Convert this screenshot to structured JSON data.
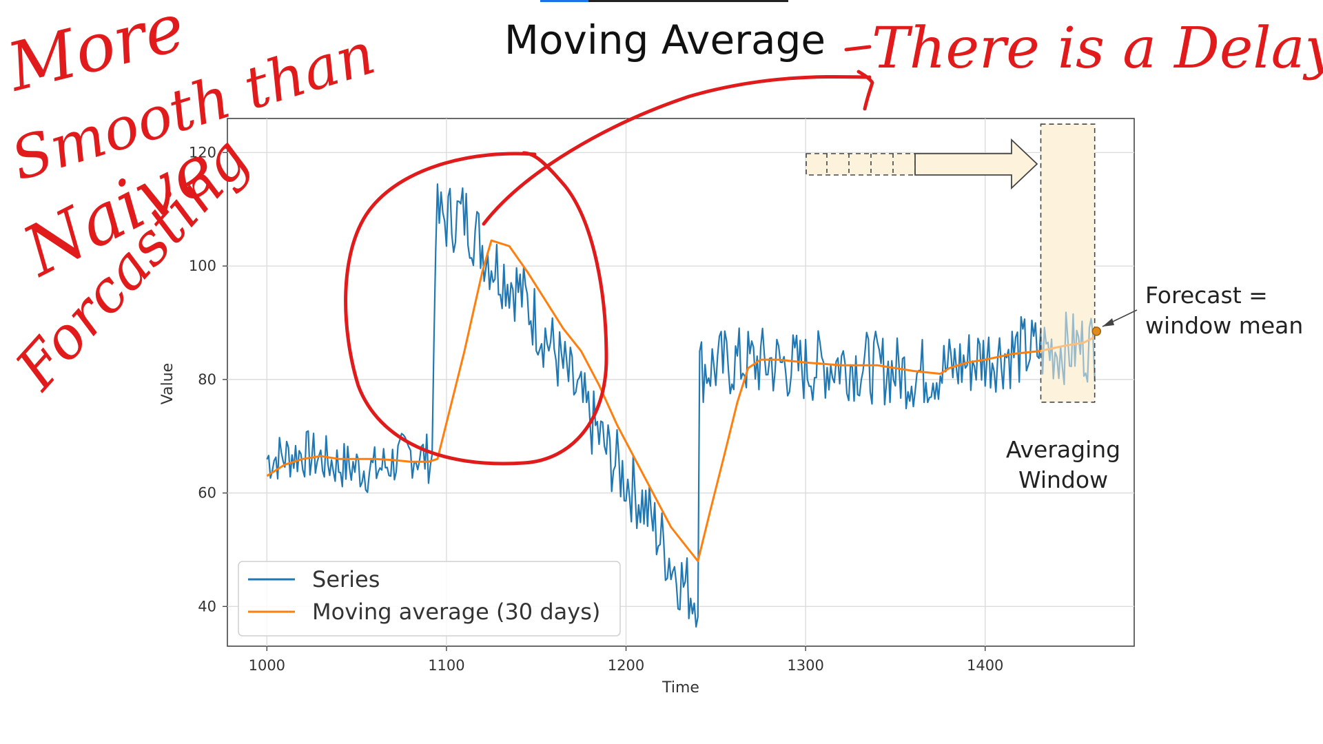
{
  "slide": {
    "title": "Moving Average"
  },
  "colors": {
    "series": "#1f77b4",
    "moving_average": "#ff7f0e",
    "ink": "#e11b1b",
    "window_fill": "#fdf3dc"
  },
  "annotations": {
    "forecast_label_1": "Forecast =",
    "forecast_label_2": "window mean",
    "window_label_1": "Averaging",
    "window_label_2": "Window"
  },
  "handwriting": {
    "line1": "More",
    "line2": "Smooth than",
    "line3": "Naive",
    "line4": "Forcasting",
    "right_note": "There is a Delay"
  },
  "chart_data": {
    "type": "line",
    "title": "",
    "xlabel": "Time",
    "ylabel": "Value",
    "xlim": [
      978,
      1483
    ],
    "ylim": [
      33,
      126
    ],
    "xticks": [
      1000,
      1100,
      1200,
      1300,
      1400
    ],
    "yticks": [
      40,
      60,
      80,
      100,
      120
    ],
    "grid": true,
    "legend_position": "lower-left",
    "averaging_window": {
      "x_start": 1431,
      "x_end": 1461,
      "y_start": 76,
      "y_end": 125
    },
    "forecast_point": {
      "x": 1462,
      "y": 88.5
    },
    "series": [
      {
        "name": "Series",
        "style": "noisy",
        "values": [
          [
            1000,
            66
          ],
          [
            1020,
            67
          ],
          [
            1040,
            65
          ],
          [
            1060,
            64
          ],
          [
            1080,
            67
          ],
          [
            1092,
            66
          ],
          [
            1094,
            108
          ],
          [
            1110,
            109
          ],
          [
            1125,
            101
          ],
          [
            1140,
            96
          ],
          [
            1160,
            85
          ],
          [
            1175,
            76
          ],
          [
            1190,
            67
          ],
          [
            1210,
            58
          ],
          [
            1225,
            48
          ],
          [
            1232,
            44
          ],
          [
            1238,
            42
          ],
          [
            1240,
            43
          ],
          [
            1241,
            82
          ],
          [
            1260,
            83
          ],
          [
            1280,
            83
          ],
          [
            1300,
            82
          ],
          [
            1320,
            83
          ],
          [
            1340,
            82
          ],
          [
            1360,
            81
          ],
          [
            1380,
            82
          ],
          [
            1400,
            84
          ],
          [
            1420,
            85
          ],
          [
            1461,
            86
          ]
        ]
      },
      {
        "name": "Moving average (30 days)",
        "values": [
          [
            1000,
            63
          ],
          [
            1010,
            65
          ],
          [
            1020,
            66
          ],
          [
            1030,
            66.5
          ],
          [
            1040,
            66
          ],
          [
            1050,
            66
          ],
          [
            1060,
            66
          ],
          [
            1070,
            65.8
          ],
          [
            1080,
            65.5
          ],
          [
            1090,
            65.5
          ],
          [
            1095,
            66
          ],
          [
            1110,
            85
          ],
          [
            1120,
            99
          ],
          [
            1125,
            104.5
          ],
          [
            1135,
            103.5
          ],
          [
            1145,
            99
          ],
          [
            1155,
            94
          ],
          [
            1165,
            89
          ],
          [
            1175,
            85
          ],
          [
            1185,
            79
          ],
          [
            1195,
            72
          ],
          [
            1205,
            66
          ],
          [
            1215,
            60
          ],
          [
            1225,
            54
          ],
          [
            1235,
            50
          ],
          [
            1240,
            48
          ],
          [
            1247,
            57
          ],
          [
            1255,
            67
          ],
          [
            1262,
            76
          ],
          [
            1268,
            82
          ],
          [
            1275,
            83.5
          ],
          [
            1285,
            83.5
          ],
          [
            1300,
            83
          ],
          [
            1320,
            82.5
          ],
          [
            1340,
            82.5
          ],
          [
            1360,
            81.5
          ],
          [
            1375,
            81
          ],
          [
            1380,
            82
          ],
          [
            1390,
            83
          ],
          [
            1400,
            83.5
          ],
          [
            1415,
            84.5
          ],
          [
            1430,
            85
          ],
          [
            1445,
            86
          ],
          [
            1455,
            86.5
          ],
          [
            1461,
            87.5
          ]
        ]
      }
    ]
  }
}
